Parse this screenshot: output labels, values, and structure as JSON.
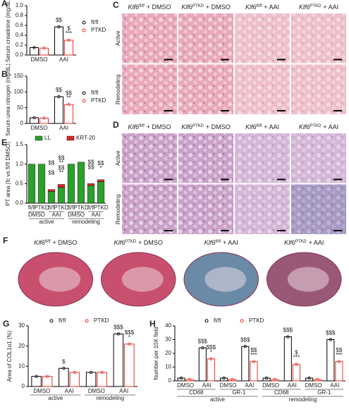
{
  "chart_data": [
    {
      "panel": "A",
      "type": "bar",
      "ylabel": "Serum creatinine (mg/dL)",
      "categories": [
        "DMSO",
        "AAI"
      ],
      "series": [
        {
          "name": "fl/fl",
          "color": "#000000",
          "values": [
            0.15,
            0.57
          ]
        },
        {
          "name": "PTKD",
          "color": "#e8322a",
          "values": [
            0.14,
            0.3
          ]
        }
      ],
      "ylim": [
        0,
        1
      ],
      "yticks": [
        {
          "value": 0,
          "label": "0.0"
        },
        0.2,
        0.4,
        0.6,
        0.8,
        {
          "value": 1,
          "label": "1.0"
        }
      ],
      "annotations": [
        {
          "text": "$$",
          "color": "#000000"
        },
        {
          "text": "$",
          "color": "#000000"
        },
        {
          "text": "***",
          "color": "#000000"
        }
      ]
    },
    {
      "panel": "B",
      "type": "bar",
      "ylabel": "Serum urea nitrogen (mg/dL)",
      "categories": [
        "DMSO",
        "AAI"
      ],
      "series": [
        {
          "name": "fl/fl",
          "color": "#000000",
          "values": [
            18,
            85
          ]
        },
        {
          "name": "PTKD",
          "color": "#e8322a",
          "values": [
            17,
            60
          ]
        }
      ],
      "ylim": [
        0,
        150
      ],
      "yticks": [
        0,
        50,
        100,
        150
      ],
      "annotations": [
        {
          "text": "$$",
          "color": "#000000"
        },
        {
          "text": "$$",
          "color": "#000000"
        },
        {
          "text": "**",
          "color": "#000000"
        }
      ]
    },
    {
      "panel": "E",
      "type": "stacked_bar",
      "ylabel": "PT area (fc vs fl/fl DMSO)",
      "categories": [
        "fl/fl",
        "PTKD",
        "fl/fl",
        "PTKD",
        "fl/fl",
        "PTKD",
        "fl/fl",
        "PTKD"
      ],
      "groups": [
        "DMSO",
        "AAI",
        "DMSO",
        "AAI"
      ],
      "supergroups": [
        "active",
        "remodeling"
      ],
      "series": [
        {
          "name": "LL",
          "color": "#2ca02c",
          "values": [
            1.0,
            1.0,
            0.3,
            0.4,
            1.0,
            1.05,
            0.45,
            0.55
          ]
        },
        {
          "name": "KRT-20",
          "color": "#d62728",
          "values": [
            0,
            0,
            0.05,
            0.08,
            0,
            0,
            0.05,
            0.05
          ]
        }
      ],
      "ylim": [
        0,
        1.5
      ],
      "yticks": [
        {
          "value": 0,
          "label": "0.0"
        },
        0.5,
        {
          "value": 1,
          "label": "1.0"
        },
        1.5
      ],
      "annotations": [
        {
          "text": "$$",
          "color": "#e8322a"
        },
        {
          "text": "$$",
          "color": "#e8322a"
        },
        {
          "text": "**",
          "color": "#e8322a"
        },
        {
          "text": "$$",
          "color": "#2ca02c"
        },
        {
          "text": "$$",
          "color": "#2ca02c"
        },
        {
          "text": "**",
          "color": "#2ca02c"
        },
        {
          "text": "$$",
          "color": "#e8322a"
        },
        {
          "text": "$$",
          "color": "#2ca02c"
        },
        {
          "text": "$$",
          "color": "#2ca02c"
        },
        {
          "text": "*",
          "color": "#2ca02c"
        }
      ]
    },
    {
      "panel": "G",
      "type": "bar",
      "ylabel": "Area of COL1α1 (%)",
      "categories": [
        "DMSO",
        "AAI",
        "DMSO",
        "AAI"
      ],
      "supergroups": [
        "active",
        "remodeling"
      ],
      "series": [
        {
          "name": "fl/fl",
          "color": "#000000",
          "values": [
            5,
            9,
            7,
            26
          ]
        },
        {
          "name": "PTKD",
          "color": "#e8322a",
          "values": [
            5,
            7,
            7,
            21
          ]
        }
      ],
      "ylim": [
        0,
        30
      ],
      "yticks": [
        0,
        10,
        20,
        30
      ],
      "annotations": [
        {
          "text": "$",
          "color": "#000000"
        },
        {
          "text": "$$$",
          "color": "#000000"
        },
        {
          "text": "$$$",
          "color": "#000000"
        },
        {
          "text": "*",
          "color": "#000000"
        }
      ]
    },
    {
      "panel": "H",
      "type": "bar",
      "ylabel": "Number per 10X field",
      "categories": [
        "DMSO",
        "AAI",
        "DMSO",
        "AAI",
        "DMSO",
        "AAI",
        "DMSO",
        "AAI"
      ],
      "groups": [
        "CD68",
        "GR-1",
        "CD68",
        "GR-1"
      ],
      "supergroups": [
        "active",
        "remodeling"
      ],
      "series": [
        {
          "name": "fl/fl",
          "color": "#000000",
          "values": [
            2,
            24,
            2,
            25,
            2,
            32,
            2,
            30
          ]
        },
        {
          "name": "PTKD",
          "color": "#e8322a",
          "values": [
            1,
            16,
            1,
            14,
            1,
            12,
            1,
            14
          ]
        }
      ],
      "ylim": [
        0,
        40
      ],
      "yticks": [
        0,
        10,
        20,
        30,
        40
      ],
      "annotations": [
        {
          "text": "$$$",
          "color": "#000000"
        },
        {
          "text": "$$$",
          "color": "#000000"
        },
        {
          "text": "*",
          "color": "#000000"
        },
        {
          "text": "$$$",
          "color": "#000000"
        },
        {
          "text": "$$",
          "color": "#000000"
        },
        {
          "text": "***",
          "color": "#000000"
        },
        {
          "text": "$$$",
          "color": "#000000"
        },
        {
          "text": "$",
          "color": "#000000"
        },
        {
          "text": "***",
          "color": "#000000"
        },
        {
          "text": "$$$",
          "color": "#000000"
        },
        {
          "text": "$$",
          "color": "#000000"
        },
        {
          "text": "***",
          "color": "#000000"
        }
      ]
    }
  ],
  "micrographs": [
    {
      "panel": "C",
      "columns": [
        {
          "gene": "Klf6",
          "genotype": "fl/fl",
          "treatment": "+ DMSO"
        },
        {
          "gene": "Klf6",
          "genotype": "PTKD",
          "treatment": "+ DMSO"
        },
        {
          "gene": "Klf6",
          "genotype": "fl/fl",
          "treatment": "+ AAI"
        },
        {
          "gene": "Klf6",
          "genotype": "PTKD",
          "treatment": "+ AAI"
        }
      ],
      "rows": [
        "Active",
        "Remodeling"
      ]
    },
    {
      "panel": "D",
      "columns": [
        {
          "gene": "Klf6",
          "genotype": "fl/fl",
          "treatment": "+ DMSO"
        },
        {
          "gene": "Klf6",
          "genotype": "PTKD",
          "treatment": "+ DMSO"
        },
        {
          "gene": "Klf6",
          "genotype": "fl/fl",
          "treatment": "+ AAI"
        },
        {
          "gene": "Klf6",
          "genotype": "PTKD",
          "treatment": "+ AAI"
        }
      ],
      "rows": [
        "Active",
        "Remodeling"
      ]
    },
    {
      "panel": "F",
      "columns": [
        {
          "gene": "Klf6",
          "genotype": "fl/fl",
          "treatment": "+ DMSO"
        },
        {
          "gene": "Klf6",
          "genotype": "PTKD",
          "treatment": "+ DMSO"
        },
        {
          "gene": "Klf6",
          "genotype": "fl/fl",
          "treatment": "+ AAI"
        },
        {
          "gene": "Klf6",
          "genotype": "PTKD",
          "treatment": "+ AAI"
        }
      ],
      "rows": []
    }
  ]
}
